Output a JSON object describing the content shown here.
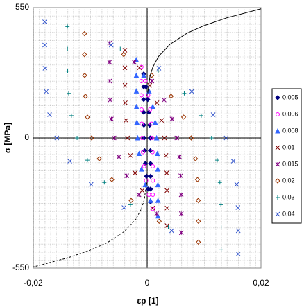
{
  "chart_data": {
    "type": "scatter",
    "x_label": "εp [1]",
    "y_label": "σ [MPa]",
    "xlim": [
      -0.02,
      0.02
    ],
    "ylim": [
      -550,
      550
    ],
    "xticks": [
      {
        "value": -0.02,
        "label": "-0,02"
      },
      0,
      {
        "value": 0.02,
        "label": "0,02"
      }
    ],
    "yticks": [
      -550,
      0,
      550
    ],
    "grid": true,
    "legend": "right",
    "series": [
      {
        "name": "0,005",
        "color": "#000080",
        "marker": "diamond-filled",
        "x": [
          -0.0006,
          -0.0006,
          -0.0006,
          -0.00059,
          -0.00057,
          -0.00053,
          -0.00044,
          -0.00031,
          -0.00011,
          0.00019,
          0.0006,
          0.0006,
          0.0006,
          0.00059,
          0.00057,
          0.00053,
          0.00044,
          0.00031,
          0.00011,
          -0.00019
        ],
        "values": [
          270,
          216,
          162,
          108,
          54,
          0,
          -54,
          -108,
          -162,
          -216,
          -270,
          -216,
          -162,
          -108,
          -54,
          0,
          54,
          108,
          162,
          216
        ]
      },
      {
        "name": "0,006",
        "color": "#ff00ff",
        "marker": "circle-open",
        "x": [
          -0.001,
          -0.001,
          -0.001,
          -0.00098,
          -0.00095,
          -0.00088,
          -0.00074,
          -0.00052,
          -0.00018,
          0.00031,
          0.001,
          0.001,
          0.001,
          0.00098,
          0.00095,
          0.00088,
          0.00074,
          0.00052,
          0.00018,
          -0.00031
        ],
        "values": [
          300,
          240,
          180,
          120,
          60,
          0,
          -60,
          -120,
          -180,
          -240,
          -300,
          -240,
          -180,
          -120,
          -60,
          0,
          60,
          120,
          180,
          240
        ]
      },
      {
        "name": "0,008",
        "color": "#3366ff",
        "marker": "triangle-filled",
        "x": [
          -0.0019,
          -0.0019,
          -0.00189,
          -0.00187,
          -0.0018,
          -0.00166,
          -0.00141,
          -0.00099,
          -0.00034,
          0.00059,
          0.0019,
          0.0019,
          0.00189,
          0.00187,
          0.0018,
          0.00166,
          0.00141,
          0.00099,
          0.00034,
          -0.00059
        ],
        "values": [
          330,
          264,
          198,
          132,
          66,
          0,
          -66,
          -132,
          -198,
          -264,
          -330,
          -264,
          -198,
          -132,
          -66,
          0,
          66,
          132,
          198,
          264
        ]
      },
      {
        "name": "0,01",
        "color": "#800000",
        "marker": "x",
        "x": [
          -0.0039,
          -0.0039,
          -0.00389,
          -0.00384,
          -0.00371,
          -0.00344,
          -0.00294,
          -0.00212,
          -0.00087,
          0.00096,
          0.0035,
          0.0035,
          0.00349,
          0.00344,
          0.00331,
          0.00304,
          0.00254,
          0.00172,
          0.00047,
          -0.00136
        ],
        "values": [
          370,
          296,
          222,
          148,
          74,
          0,
          -74,
          -148,
          -222,
          -296,
          -370,
          -296,
          -222,
          -148,
          -74,
          0,
          74,
          148,
          222,
          296
        ]
      },
      {
        "name": "0,015",
        "color": "#800080",
        "marker": "star",
        "x": [
          -0.0066,
          -0.0066,
          -0.00658,
          -0.0065,
          -0.00628,
          -0.00581,
          -0.00497,
          -0.00358,
          -0.00144,
          0.00167,
          0.006,
          0.006,
          0.00598,
          0.0059,
          0.00568,
          0.00521,
          0.00437,
          0.00298,
          0.00084,
          -0.00227
        ],
        "values": [
          400,
          320,
          240,
          160,
          80,
          0,
          -80,
          -160,
          -240,
          -320,
          -400,
          -320,
          -240,
          -160,
          -80,
          0,
          80,
          160,
          240,
          320
        ]
      },
      {
        "name": "0,02",
        "color": "#993300",
        "marker": "diamond-open",
        "x": [
          -0.011,
          -0.011,
          -0.01097,
          -0.01084,
          -0.01049,
          -0.00975,
          -0.00841,
          -0.0062,
          -0.00281,
          0.00212,
          0.009,
          0.009,
          0.00897,
          0.00884,
          0.00849,
          0.00775,
          0.00641,
          0.0042,
          0.00081,
          -0.00412
        ],
        "values": [
          440,
          352,
          264,
          176,
          88,
          0,
          -88,
          -176,
          -264,
          -352,
          -440,
          -352,
          -264,
          -176,
          -88,
          0,
          88,
          176,
          264,
          352
        ]
      },
      {
        "name": "0,03",
        "color": "#008080",
        "marker": "plus",
        "x": [
          -0.014,
          -0.014,
          -0.01396,
          -0.01378,
          -0.01331,
          -0.01231,
          -0.0105,
          -0.00752,
          -0.00294,
          0.00372,
          0.013,
          0.013,
          0.01296,
          0.01278,
          0.01231,
          0.01131,
          0.0095,
          0.00652,
          0.00194,
          -0.00472
        ],
        "values": [
          470,
          376,
          282,
          188,
          94,
          0,
          -94,
          -188,
          -282,
          -376,
          -470,
          -376,
          -282,
          -188,
          -94,
          0,
          94,
          188,
          282,
          376
        ]
      },
      {
        "name": "0,04",
        "color": "#3355cc",
        "marker": "x",
        "x": [
          -0.018,
          -0.018,
          -0.01795,
          -0.01773,
          -0.01713,
          -0.01588,
          -0.01359,
          -0.00984,
          -0.00407,
          0.00431,
          0.016,
          0.016,
          0.01595,
          0.01573,
          0.01513,
          0.01388,
          0.01159,
          0.00784,
          0.00207,
          -0.00631
        ],
        "values": [
          490,
          392,
          294,
          196,
          98,
          0,
          -98,
          -196,
          -294,
          -392,
          -490,
          -392,
          -294,
          -196,
          -98,
          0,
          98,
          196,
          294,
          392
        ]
      },
      {
        "color": "#000000",
        "line": "solid",
        "x": [
          0.0001,
          0.0005,
          0.001,
          0.002,
          0.004,
          0.007,
          0.01,
          0.014,
          0.02
        ],
        "values": [
          189,
          261,
          299,
          344,
          395,
          442,
          474,
          507,
          545
        ]
      },
      {
        "color": "#000000",
        "line": "dashed",
        "x": [
          -0.0001,
          -0.0005,
          -0.001,
          -0.002,
          -0.004,
          -0.007,
          -0.01,
          -0.014,
          -0.02
        ],
        "values": [
          -189,
          -261,
          -299,
          -344,
          -395,
          -442,
          -474,
          -507,
          -545
        ]
      }
    ]
  }
}
